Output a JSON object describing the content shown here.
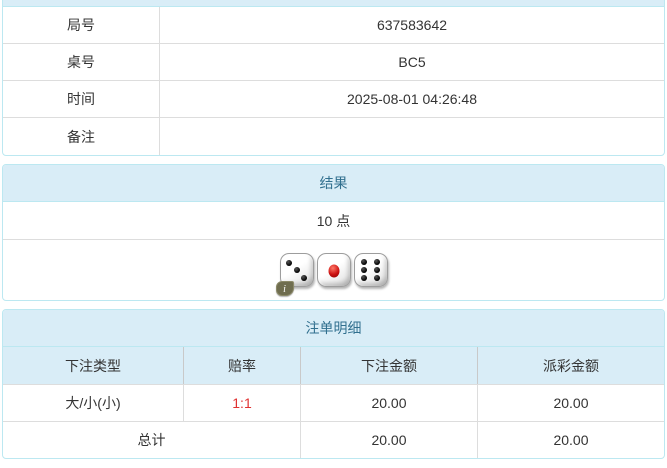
{
  "colors": {
    "panel_border": "#bce8f1",
    "heading_bg": "#d9edf7",
    "heading_text": "#31708f",
    "row_divider": "#dddddd",
    "header_divider": "#c9c9c9",
    "body_text": "#333333",
    "odds_red": "#e03131",
    "info_badge_bg": "#6f6d4f"
  },
  "info_table": {
    "rows": [
      {
        "label": "局号",
        "value": "637583642"
      },
      {
        "label": "桌号",
        "value": "BC5"
      },
      {
        "label": "时间",
        "value": "2025-08-01 04:26:48"
      },
      {
        "label": "备注",
        "value": ""
      }
    ]
  },
  "result_panel": {
    "title": "结果",
    "points": "10 点",
    "dice": [
      3,
      1,
      6
    ],
    "info_icon": "i"
  },
  "bets_panel": {
    "title": "注单明细",
    "columns": [
      "下注类型",
      "赔率",
      "下注金额",
      "派彩金额"
    ],
    "rows": [
      {
        "type": "大/小(小)",
        "odds": "1:1",
        "bet_amount": "20.00",
        "payout_amount": "20.00"
      }
    ],
    "total": {
      "label": "总计",
      "bet_amount": "20.00",
      "payout_amount": "20.00"
    }
  }
}
